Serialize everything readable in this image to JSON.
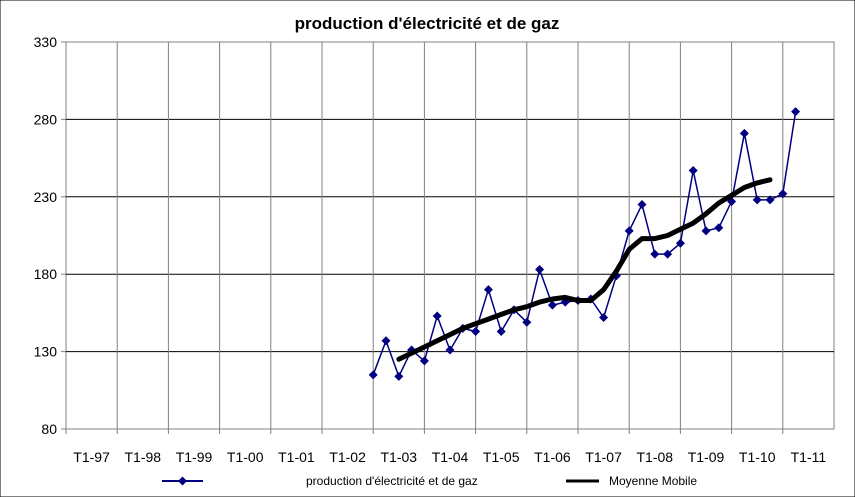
{
  "chart_data": {
    "type": "line",
    "title": "production d'électricité et de gaz",
    "xlabel": "",
    "ylabel": "",
    "ylim": [
      80,
      330
    ],
    "yticks": [
      80,
      130,
      180,
      230,
      280,
      330
    ],
    "categories": [
      "T1-97",
      "T1-98",
      "T1-99",
      "T1-00",
      "T1-01",
      "T1-02",
      "T1-03",
      "T1-04",
      "T1-05",
      "T1-06",
      "T1-07",
      "T1-08",
      "T1-09",
      "T1-10",
      "T1-11"
    ],
    "grid": true,
    "legend_position": "bottom",
    "series": [
      {
        "name": "production d'électricité et de gaz",
        "color": "#000080",
        "marker": "diamond",
        "x": [
          2003.0,
          2003.25,
          2003.5,
          2003.75,
          2004.0,
          2004.25,
          2004.5,
          2004.75,
          2005.0,
          2005.25,
          2005.5,
          2005.75,
          2006.0,
          2006.25,
          2006.5,
          2006.75,
          2007.0,
          2007.25,
          2007.5,
          2007.75,
          2008.0,
          2008.25,
          2008.5,
          2008.75,
          2009.0,
          2009.25,
          2009.5,
          2009.75,
          2010.0,
          2010.25,
          2010.5,
          2010.75,
          2011.0,
          2011.25
        ],
        "values": [
          115,
          137,
          114,
          131,
          124,
          153,
          131,
          145,
          143,
          170,
          143,
          157,
          149,
          183,
          160,
          162,
          163,
          164,
          152,
          179,
          208,
          225,
          193,
          193,
          200,
          247,
          208,
          210,
          227,
          271,
          228,
          228,
          232,
          285
        ]
      },
      {
        "name": "Moyenne Mobile",
        "color": "#000000",
        "marker": "none",
        "x": [
          2003.5,
          2003.75,
          2004.0,
          2004.25,
          2004.5,
          2004.75,
          2005.0,
          2005.25,
          2005.5,
          2005.75,
          2006.0,
          2006.25,
          2006.5,
          2006.75,
          2007.0,
          2007.25,
          2007.5,
          2007.75,
          2008.0,
          2008.25,
          2008.5,
          2008.75,
          2009.0,
          2009.25,
          2009.5,
          2009.75,
          2010.0,
          2010.25,
          2010.5,
          2010.75
        ],
        "values": [
          125,
          129,
          133,
          137,
          141,
          145,
          148,
          151,
          154,
          157,
          159,
          162,
          164,
          165,
          163,
          163,
          170,
          182,
          196,
          203,
          203,
          205,
          209,
          213,
          219,
          226,
          231,
          236,
          239,
          241
        ]
      }
    ]
  }
}
